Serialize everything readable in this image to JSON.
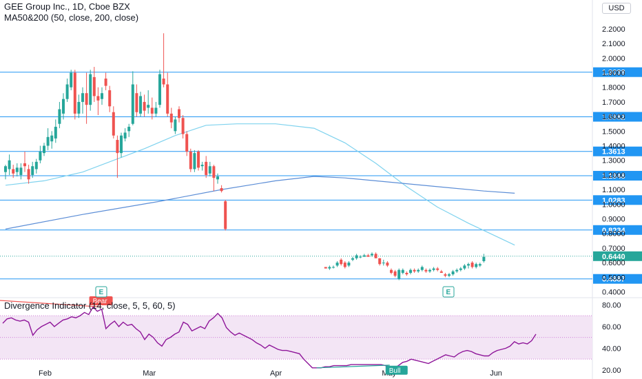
{
  "header": {
    "title": "GEE Group Inc., 1D, Cboe BZX",
    "indicator": "MA50&200 (50, close, 200, close)"
  },
  "oscillator": {
    "label": "Divergence Indicator (14, close, 5, 5, 60, 5)",
    "bear_label": "Bear",
    "bull_label": "Bull"
  },
  "currency_button": "USD",
  "event_marker": "E",
  "colors": {
    "up": "#26a69a",
    "down": "#ef5350",
    "level_line": "#2196f3",
    "ma50": "#7ed2ee",
    "ma200": "#5b8dd6",
    "oscillator_line": "#8e1599",
    "bull_line": "#26a69a",
    "bear_line": "#ef5350",
    "band_fill": "#f3e5f5",
    "current_price": "#26a69a"
  },
  "chart_data": [
    {
      "type": "candlestick",
      "title": "GEE Group Inc., 1D, Cboe BZX",
      "x_tick_labels": [
        "Feb",
        "Mar",
        "Apr",
        "May",
        "Jun"
      ],
      "y_ticks": [
        "2.2000",
        "2.1000",
        "2.0000",
        "1.9000",
        "1.8000",
        "1.7000",
        "1.6000",
        "1.5000",
        "1.4000",
        "1.3000",
        "1.2000",
        "1.1000",
        "1.0000",
        "0.9000",
        "0.8000",
        "0.7000",
        "0.6000",
        "0.5000",
        "0.4000"
      ],
      "ylim": [
        0.36,
        2.36
      ],
      "candles": [
        {
          "o": 1.22,
          "h": 1.27,
          "l": 1.17,
          "c": 1.26
        },
        {
          "o": 1.24,
          "h": 1.34,
          "l": 1.2,
          "c": 1.3
        },
        {
          "o": 1.24,
          "h": 1.27,
          "l": 1.18,
          "c": 1.21
        },
        {
          "o": 1.22,
          "h": 1.28,
          "l": 1.19,
          "c": 1.25
        },
        {
          "o": 1.2,
          "h": 1.28,
          "l": 1.17,
          "c": 1.25
        },
        {
          "o": 1.28,
          "h": 1.36,
          "l": 1.22,
          "c": 1.26
        },
        {
          "o": 1.24,
          "h": 1.27,
          "l": 1.14,
          "c": 1.17
        },
        {
          "o": 1.2,
          "h": 1.29,
          "l": 1.18,
          "c": 1.26
        },
        {
          "o": 1.24,
          "h": 1.31,
          "l": 1.21,
          "c": 1.29
        },
        {
          "o": 1.3,
          "h": 1.4,
          "l": 1.28,
          "c": 1.36
        },
        {
          "o": 1.35,
          "h": 1.42,
          "l": 1.33,
          "c": 1.4
        },
        {
          "o": 1.4,
          "h": 1.52,
          "l": 1.37,
          "c": 1.46
        },
        {
          "o": 1.43,
          "h": 1.5,
          "l": 1.38,
          "c": 1.47
        },
        {
          "o": 1.45,
          "h": 1.58,
          "l": 1.42,
          "c": 1.53
        },
        {
          "o": 1.55,
          "h": 1.7,
          "l": 1.52,
          "c": 1.65
        },
        {
          "o": 1.62,
          "h": 1.76,
          "l": 1.58,
          "c": 1.72
        },
        {
          "o": 1.72,
          "h": 1.86,
          "l": 1.7,
          "c": 1.82
        },
        {
          "o": 1.8,
          "h": 1.92,
          "l": 1.78,
          "c": 1.9
        },
        {
          "o": 1.9,
          "h": 1.92,
          "l": 1.58,
          "c": 1.62
        },
        {
          "o": 1.62,
          "h": 1.75,
          "l": 1.59,
          "c": 1.7
        },
        {
          "o": 1.7,
          "h": 1.8,
          "l": 1.62,
          "c": 1.76
        },
        {
          "o": 1.76,
          "h": 1.9,
          "l": 1.55,
          "c": 1.68
        },
        {
          "o": 1.68,
          "h": 1.92,
          "l": 1.64,
          "c": 1.89
        },
        {
          "o": 1.87,
          "h": 1.94,
          "l": 1.7,
          "c": 1.74
        },
        {
          "o": 1.74,
          "h": 1.8,
          "l": 1.61,
          "c": 1.71
        },
        {
          "o": 1.72,
          "h": 1.8,
          "l": 1.68,
          "c": 1.76
        },
        {
          "o": 1.86,
          "h": 1.9,
          "l": 1.78,
          "c": 1.81
        },
        {
          "o": 1.78,
          "h": 1.81,
          "l": 1.63,
          "c": 1.67
        },
        {
          "o": 1.63,
          "h": 1.67,
          "l": 1.45,
          "c": 1.47
        },
        {
          "o": 1.44,
          "h": 1.47,
          "l": 1.18,
          "c": 1.35
        },
        {
          "o": 1.35,
          "h": 1.49,
          "l": 1.32,
          "c": 1.47
        },
        {
          "o": 1.45,
          "h": 1.52,
          "l": 1.43,
          "c": 1.49
        },
        {
          "o": 1.5,
          "h": 1.55,
          "l": 1.46,
          "c": 1.53
        },
        {
          "o": 1.55,
          "h": 1.91,
          "l": 1.54,
          "c": 1.82
        },
        {
          "o": 1.76,
          "h": 1.82,
          "l": 1.6,
          "c": 1.63
        },
        {
          "o": 1.62,
          "h": 1.77,
          "l": 1.6,
          "c": 1.74
        },
        {
          "o": 1.7,
          "h": 1.75,
          "l": 1.6,
          "c": 1.64
        },
        {
          "o": 1.66,
          "h": 1.78,
          "l": 1.62,
          "c": 1.68
        },
        {
          "o": 1.66,
          "h": 1.73,
          "l": 1.58,
          "c": 1.62
        },
        {
          "o": 1.62,
          "h": 1.7,
          "l": 1.6,
          "c": 1.66
        },
        {
          "o": 1.68,
          "h": 1.92,
          "l": 1.66,
          "c": 1.89
        },
        {
          "o": 1.86,
          "h": 2.17,
          "l": 1.8,
          "c": 1.82
        },
        {
          "o": 1.82,
          "h": 1.9,
          "l": 1.6,
          "c": 1.62
        },
        {
          "o": 1.62,
          "h": 1.66,
          "l": 1.52,
          "c": 1.56
        },
        {
          "o": 1.5,
          "h": 1.6,
          "l": 1.48,
          "c": 1.58
        },
        {
          "o": 1.65,
          "h": 1.67,
          "l": 1.56,
          "c": 1.59
        },
        {
          "o": 1.59,
          "h": 1.61,
          "l": 1.45,
          "c": 1.48
        },
        {
          "o": 1.48,
          "h": 1.5,
          "l": 1.33,
          "c": 1.36
        },
        {
          "o": 1.36,
          "h": 1.38,
          "l": 1.22,
          "c": 1.24
        },
        {
          "o": 1.24,
          "h": 1.37,
          "l": 1.22,
          "c": 1.35
        },
        {
          "o": 1.36,
          "h": 1.37,
          "l": 1.23,
          "c": 1.25
        },
        {
          "o": 1.26,
          "h": 1.29,
          "l": 1.23,
          "c": 1.27
        },
        {
          "o": 1.29,
          "h": 1.33,
          "l": 1.18,
          "c": 1.2
        },
        {
          "o": 1.21,
          "h": 1.29,
          "l": 1.19,
          "c": 1.26
        },
        {
          "o": 1.26,
          "h": 1.27,
          "l": 1.09,
          "c": 1.18
        },
        {
          "o": 1.17,
          "h": 1.21,
          "l": 1.14,
          "c": 1.19
        },
        {
          "o": 1.11,
          "h": 1.13,
          "l": 1.08,
          "c": 1.09
        },
        {
          "o": 1.02,
          "h": 1.03,
          "l": 0.82,
          "c": 0.83
        },
        {
          "gap": true
        },
        {
          "gap": true
        },
        {
          "gap": true
        },
        {
          "gap": true
        },
        {
          "gap": true
        },
        {
          "gap": true
        },
        {
          "gap": true
        },
        {
          "gap": true
        },
        {
          "gap": true
        },
        {
          "gap": true
        },
        {
          "gap": true
        },
        {
          "gap": true
        },
        {
          "gap": true
        },
        {
          "gap": true
        },
        {
          "gap": true
        },
        {
          "gap": true
        },
        {
          "gap": true
        },
        {
          "gap": true
        },
        {
          "gap": true
        },
        {
          "gap": true
        },
        {
          "gap": true
        },
        {
          "gap": true
        },
        {
          "gap": true
        },
        {
          "gap": true
        },
        {
          "gap": true
        },
        {
          "o": 0.57,
          "h": 0.57,
          "l": 0.56,
          "c": 0.56
        },
        {
          "o": 0.56,
          "h": 0.58,
          "l": 0.55,
          "c": 0.57
        },
        {
          "o": 0.57,
          "h": 0.58,
          "l": 0.56,
          "c": 0.57
        },
        {
          "o": 0.58,
          "h": 0.61,
          "l": 0.57,
          "c": 0.6
        },
        {
          "o": 0.62,
          "h": 0.63,
          "l": 0.58,
          "c": 0.59
        },
        {
          "o": 0.6,
          "h": 0.61,
          "l": 0.56,
          "c": 0.57
        },
        {
          "o": 0.58,
          "h": 0.61,
          "l": 0.57,
          "c": 0.6
        },
        {
          "o": 0.62,
          "h": 0.64,
          "l": 0.61,
          "c": 0.63
        },
        {
          "o": 0.63,
          "h": 0.66,
          "l": 0.62,
          "c": 0.65
        },
        {
          "o": 0.64,
          "h": 0.65,
          "l": 0.63,
          "c": 0.64
        },
        {
          "o": 0.64,
          "h": 0.66,
          "l": 0.64,
          "c": 0.65
        },
        {
          "o": 0.65,
          "h": 0.66,
          "l": 0.64,
          "c": 0.64
        },
        {
          "o": 0.65,
          "h": 0.67,
          "l": 0.64,
          "c": 0.66
        },
        {
          "o": 0.66,
          "h": 0.67,
          "l": 0.63,
          "c": 0.63
        },
        {
          "o": 0.63,
          "h": 0.63,
          "l": 0.58,
          "c": 0.59
        },
        {
          "o": 0.6,
          "h": 0.62,
          "l": 0.58,
          "c": 0.6
        },
        {
          "o": 0.6,
          "h": 0.61,
          "l": 0.57,
          "c": 0.58
        },
        {
          "o": 0.55,
          "h": 0.56,
          "l": 0.52,
          "c": 0.53
        },
        {
          "o": 0.54,
          "h": 0.55,
          "l": 0.5,
          "c": 0.51
        },
        {
          "o": 0.49,
          "h": 0.56,
          "l": 0.48,
          "c": 0.55
        },
        {
          "o": 0.53,
          "h": 0.56,
          "l": 0.52,
          "c": 0.55
        },
        {
          "o": 0.53,
          "h": 0.54,
          "l": 0.51,
          "c": 0.52
        },
        {
          "o": 0.53,
          "h": 0.56,
          "l": 0.52,
          "c": 0.55
        },
        {
          "o": 0.55,
          "h": 0.56,
          "l": 0.53,
          "c": 0.54
        },
        {
          "o": 0.54,
          "h": 0.56,
          "l": 0.53,
          "c": 0.55
        },
        {
          "o": 0.55,
          "h": 0.58,
          "l": 0.54,
          "c": 0.57
        },
        {
          "o": 0.55,
          "h": 0.56,
          "l": 0.53,
          "c": 0.54
        },
        {
          "o": 0.54,
          "h": 0.56,
          "l": 0.53,
          "c": 0.55
        },
        {
          "o": 0.55,
          "h": 0.57,
          "l": 0.54,
          "c": 0.56
        },
        {
          "o": 0.56,
          "h": 0.57,
          "l": 0.54,
          "c": 0.55
        },
        {
          "o": 0.54,
          "h": 0.55,
          "l": 0.53,
          "c": 0.53
        },
        {
          "o": 0.52,
          "h": 0.53,
          "l": 0.5,
          "c": 0.51
        },
        {
          "o": 0.51,
          "h": 0.53,
          "l": 0.5,
          "c": 0.52
        },
        {
          "o": 0.52,
          "h": 0.55,
          "l": 0.51,
          "c": 0.54
        },
        {
          "o": 0.54,
          "h": 0.56,
          "l": 0.53,
          "c": 0.55
        },
        {
          "o": 0.55,
          "h": 0.57,
          "l": 0.54,
          "c": 0.56
        },
        {
          "o": 0.56,
          "h": 0.59,
          "l": 0.55,
          "c": 0.58
        },
        {
          "o": 0.58,
          "h": 0.6,
          "l": 0.56,
          "c": 0.59
        },
        {
          "o": 0.6,
          "h": 0.61,
          "l": 0.56,
          "c": 0.57
        },
        {
          "o": 0.57,
          "h": 0.6,
          "l": 0.56,
          "c": 0.59
        },
        {
          "o": 0.58,
          "h": 0.6,
          "l": 0.57,
          "c": 0.59
        },
        {
          "o": 0.61,
          "h": 0.66,
          "l": 0.6,
          "c": 0.64
        }
      ],
      "horizontal_levels": [
        1.9038,
        1.5982,
        1.3613,
        1.1948,
        1.0283,
        0.8234,
        0.4887
      ],
      "level_labels": [
        "1.9038",
        "1.5982",
        "1.3613",
        "1.1948",
        "1.0283",
        "0.8234",
        "0.4887"
      ],
      "current_price": 0.644,
      "current_price_label": "0.6440",
      "ma50": [
        [
          0,
          1.13
        ],
        [
          10,
          1.16
        ],
        [
          20,
          1.22
        ],
        [
          28,
          1.3
        ],
        [
          36,
          1.38
        ],
        [
          44,
          1.47
        ],
        [
          52,
          1.54
        ],
        [
          60,
          1.55
        ],
        [
          70,
          1.55
        ],
        [
          80,
          1.52
        ],
        [
          88,
          1.42
        ],
        [
          96,
          1.28
        ],
        [
          104,
          1.12
        ],
        [
          112,
          0.98
        ],
        [
          120,
          0.87
        ],
        [
          128,
          0.77
        ],
        [
          132,
          0.72
        ]
      ],
      "ma200": [
        [
          0,
          0.83
        ],
        [
          20,
          0.93
        ],
        [
          40,
          1.02
        ],
        [
          56,
          1.1
        ],
        [
          70,
          1.16
        ],
        [
          80,
          1.19
        ],
        [
          88,
          1.18
        ],
        [
          100,
          1.15
        ],
        [
          112,
          1.12
        ],
        [
          124,
          1.09
        ],
        [
          132,
          1.075
        ]
      ]
    },
    {
      "type": "line",
      "title": "Divergence Indicator (14, close, 5, 5, 60, 5)",
      "y_ticks": [
        "80.00",
        "60.00",
        "40.00",
        "20.00"
      ],
      "ylim": [
        13,
        84
      ],
      "band": [
        30,
        70
      ],
      "midline": 50,
      "values": [
        63,
        67,
        68,
        66,
        65,
        66,
        64,
        52,
        57,
        60,
        62,
        64,
        60,
        63,
        66,
        67,
        69,
        68,
        70,
        73,
        71,
        78,
        74,
        76,
        58,
        62,
        65,
        60,
        64,
        61,
        62,
        58,
        55,
        48,
        53,
        50,
        45,
        42,
        48,
        50,
        53,
        55,
        64,
        62,
        56,
        58,
        60,
        58,
        65,
        68,
        72,
        68,
        59,
        55,
        52,
        54,
        52,
        50,
        48,
        45,
        43,
        40,
        43,
        41,
        39,
        38,
        38,
        37,
        36,
        35,
        30,
        26,
        22,
        22,
        22,
        23,
        23,
        24,
        24,
        24,
        24,
        25,
        25,
        25,
        25,
        25,
        25,
        25,
        25,
        24,
        23,
        22,
        24,
        27,
        28,
        30,
        29,
        28,
        27,
        26,
        28,
        30,
        32,
        34,
        33,
        32,
        35,
        37,
        38,
        37,
        35,
        34,
        33,
        33,
        36,
        38,
        39,
        40,
        42,
        46,
        44,
        45,
        44,
        47,
        53
      ]
    }
  ]
}
